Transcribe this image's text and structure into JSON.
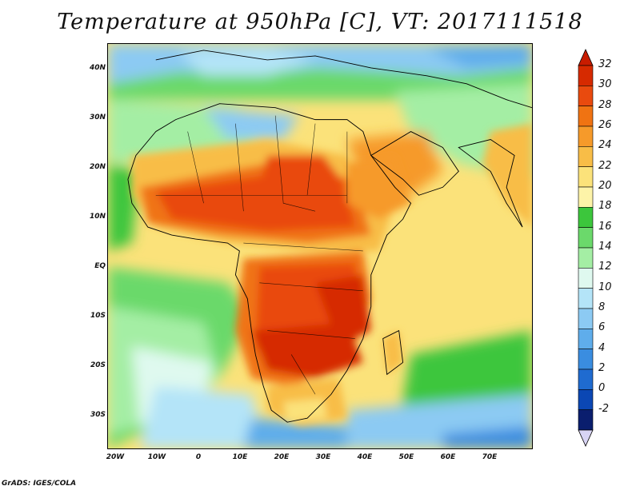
{
  "title": "Temperature at 950hPa [C], VT: 2017111518",
  "credit": "GrADS: IGES/COLA",
  "lat_labels": [
    "40N",
    "30N",
    "20N",
    "10N",
    "EQ",
    "10S",
    "20S",
    "30S"
  ],
  "lon_labels": [
    "20W",
    "10W",
    "0",
    "10E",
    "20E",
    "30E",
    "40E",
    "50E",
    "60E",
    "70E"
  ],
  "colorbar": {
    "labels": [
      "32",
      "30",
      "28",
      "26",
      "24",
      "22",
      "20",
      "18",
      "16",
      "14",
      "12",
      "10",
      "8",
      "6",
      "4",
      "2",
      "0",
      "-2"
    ],
    "colors": [
      "#d62a00",
      "#e94a0e",
      "#f07312",
      "#f69a2a",
      "#f8bd47",
      "#fbe27a",
      "#fdf3a8",
      "#3cc63c",
      "#6bd96b",
      "#a4eea4",
      "#dff9ef",
      "#b4e4f8",
      "#8ccaf3",
      "#5fadeb",
      "#3a8de0",
      "#1f6bd0",
      "#0b47b4",
      "#0a1e6e"
    ],
    "top_arrow_color": "#c81c00",
    "bottom_arrow_color": "#d8d4f4"
  }
}
